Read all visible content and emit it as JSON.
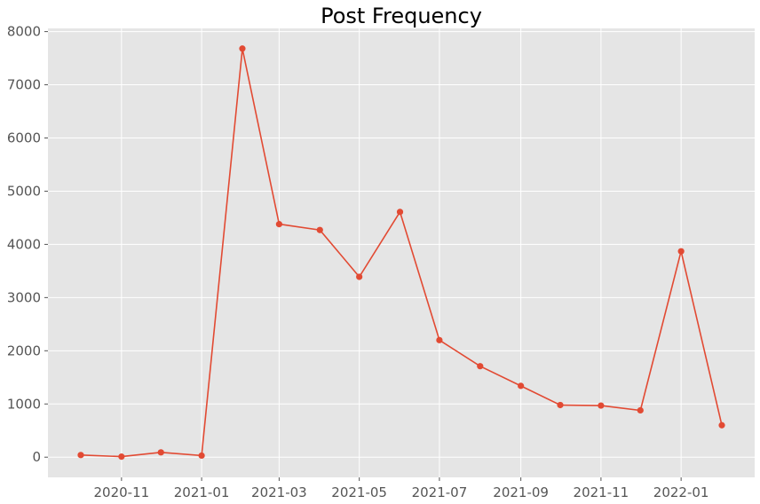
{
  "chart_data": {
    "type": "line",
    "title": "Post Frequency",
    "xlabel": "",
    "ylabel": "",
    "x": [
      "2020-10-01",
      "2020-11-01",
      "2020-12-01",
      "2021-01-01",
      "2021-02-01",
      "2021-03-01",
      "2021-04-01",
      "2021-05-01",
      "2021-06-01",
      "2021-07-01",
      "2021-08-01",
      "2021-09-01",
      "2021-10-01",
      "2021-11-01",
      "2021-12-01",
      "2022-01-01",
      "2022-02-01"
    ],
    "series": [
      {
        "values": [
          40,
          10,
          90,
          30,
          7680,
          4380,
          4270,
          3390,
          4610,
          2200,
          1710,
          1340,
          980,
          970,
          880,
          3870,
          600
        ]
      }
    ],
    "x_ticks": [
      "2020-11",
      "2021-01",
      "2021-03",
      "2021-05",
      "2021-07",
      "2021-09",
      "2021-11",
      "2022-01"
    ],
    "y_ticks": [
      0,
      1000,
      2000,
      3000,
      4000,
      5000,
      6000,
      7000,
      8000
    ],
    "xlim": [
      "2020-09-06",
      "2022-02-26"
    ],
    "ylim": [
      -380,
      8060
    ],
    "grid": true,
    "style": "ggplot",
    "colors": {
      "line": "#E24A33",
      "plot_background": "#E5E5E5",
      "grid": "#FFFFFF",
      "tick_label": "#555555"
    }
  }
}
